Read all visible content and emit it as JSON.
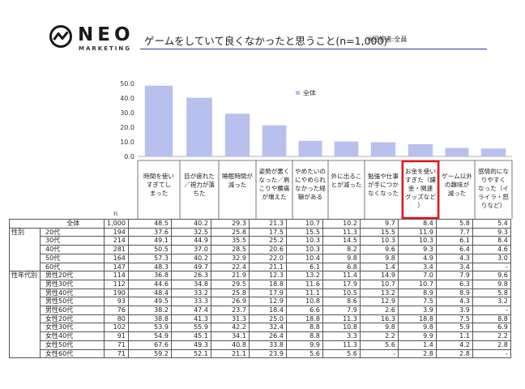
{
  "logo": {
    "word": "NEO",
    "sub": "MARKETING"
  },
  "header": {
    "title": "ゲームをしていて良くなかったと思うこと(n=1,000)",
    "note": "※回答者:全員"
  },
  "chart_data": {
    "type": "bar",
    "title": "ゲームをしていて良くなかったと思うこと(n=1,000)",
    "ylim": [
      0,
      50
    ],
    "yticks": [
      "50.0",
      "40.0",
      "30.0",
      "20.0",
      "10.0",
      "0.0"
    ],
    "legend": {
      "label": "全体",
      "position": "top-center"
    },
    "bar_color": "#b8c0ee",
    "highlight_color": "#e8141b",
    "highlight_index": 7,
    "categories": [
      "時間を使いすぎてしまった",
      "目が疲れた／視力が落ちた",
      "睡眠時間が減った",
      "姿勢が悪くなった／肩こりや腰痛が増えた",
      "やめたいのにやめられなかった経験がある",
      "外に出ることが減った",
      "勉強や仕事が手につかなくなった",
      "お金を使いすぎた（課金・関連グッズなど）",
      "ゲーム以外の趣味が減った",
      "感情的になりやすくなった（イライラ・怒りなど）"
    ],
    "category_lines": [
      [
        "時間を使い",
        "すぎてし",
        "まった"
      ],
      [
        "目が疲れた",
        "／視力が落",
        "ちた"
      ],
      [
        "睡眠時間が",
        "減った"
      ],
      [
        "姿勢が悪く",
        "なった／肩",
        "こりや腰痛",
        "が増えた"
      ],
      [
        "やめたいの",
        "にやめられ",
        "なかった経",
        "験がある"
      ],
      [
        "外に出るこ",
        "とが減った"
      ],
      [
        "勉強や仕事",
        "が手につか",
        "なくなった"
      ],
      [
        "お金を使い",
        "すぎた（課",
        "金・関連",
        "グッズなど",
        "）"
      ],
      [
        "ゲーム以外",
        "の趣味が",
        "減った"
      ],
      [
        "感情的にな",
        "りやすく",
        "なった（イ",
        "ライラ・怒",
        "りなど）"
      ]
    ],
    "values": [
      48.5,
      40.2,
      29.3,
      21.3,
      10.7,
      10.2,
      9.7,
      8.4,
      5.8,
      5.4
    ],
    "n_label": "n",
    "table": {
      "rows": [
        {
          "group": "",
          "label": "全体",
          "n": "1,000",
          "values": [
            "48.5",
            "40.2",
            "29.3",
            "21.3",
            "10.7",
            "10.2",
            "9.7",
            "8.4",
            "5.8",
            "5.4"
          ]
        },
        {
          "group": "性別",
          "label": "20代",
          "n": "194",
          "values": [
            "37.6",
            "32.5",
            "25.8",
            "17.5",
            "15.5",
            "11.3",
            "15.5",
            "11.9",
            "7.7",
            "9.3"
          ]
        },
        {
          "group": "",
          "label": "30代",
          "n": "214",
          "values": [
            "49.1",
            "44.9",
            "35.5",
            "25.2",
            "10.3",
            "14.5",
            "10.3",
            "10.3",
            "6.1",
            "8.4"
          ]
        },
        {
          "group": "",
          "label": "40代",
          "n": "281",
          "values": [
            "50.5",
            "37.0",
            "28.5",
            "20.6",
            "10.3",
            "8.2",
            "9.6",
            "9.3",
            "6.4",
            "4.6"
          ]
        },
        {
          "group": "",
          "label": "50代",
          "n": "164",
          "values": [
            "57.3",
            "40.2",
            "32.9",
            "22.0",
            "10.4",
            "9.8",
            "9.8",
            "4.9",
            "4.3",
            "3.0"
          ]
        },
        {
          "group": "",
          "label": "60代",
          "n": "147",
          "values": [
            "48.3",
            "49.7",
            "22.4",
            "21.1",
            "6.1",
            "6.8",
            "1.4",
            "3.4",
            "3.4",
            "-"
          ]
        },
        {
          "group": "性年代別",
          "label": "男性20代",
          "n": "114",
          "values": [
            "36.8",
            "26.3",
            "21.9",
            "12.3",
            "13.2",
            "11.4",
            "14.9",
            "7.0",
            "7.9",
            "9.6"
          ]
        },
        {
          "group": "",
          "label": "男性30代",
          "n": "112",
          "values": [
            "44.6",
            "34.8",
            "29.5",
            "18.8",
            "11.6",
            "17.9",
            "10.7",
            "10.7",
            "6.3",
            "9.8"
          ]
        },
        {
          "group": "",
          "label": "男性40代",
          "n": "190",
          "values": [
            "48.4",
            "33.2",
            "25.8",
            "17.9",
            "11.1",
            "10.5",
            "13.2",
            "8.9",
            "8.9",
            "5.8"
          ]
        },
        {
          "group": "",
          "label": "男性50代",
          "n": "93",
          "values": [
            "49.5",
            "33.3",
            "26.9",
            "12.9",
            "10.8",
            "8.6",
            "12.9",
            "7.5",
            "4.3",
            "3.2"
          ]
        },
        {
          "group": "",
          "label": "男性60代",
          "n": "76",
          "values": [
            "38.2",
            "47.4",
            "23.7",
            "18.4",
            "6.6",
            "7.9",
            "2.6",
            "3.9",
            "3.9",
            "-"
          ]
        },
        {
          "group": "",
          "label": "女性20代",
          "n": "80",
          "values": [
            "38.8",
            "41.3",
            "31.3",
            "25.0",
            "18.8",
            "11.3",
            "16.3",
            "18.8",
            "7.5",
            "8.8"
          ]
        },
        {
          "group": "",
          "label": "女性30代",
          "n": "102",
          "values": [
            "53.9",
            "55.9",
            "42.2",
            "32.4",
            "8.8",
            "10.8",
            "9.8",
            "9.8",
            "5.9",
            "6.9"
          ]
        },
        {
          "group": "",
          "label": "女性40代",
          "n": "91",
          "values": [
            "54.9",
            "45.1",
            "34.1",
            "26.4",
            "8.8",
            "3.3",
            "2.2",
            "9.9",
            "1.1",
            "2.2"
          ]
        },
        {
          "group": "",
          "label": "女性50代",
          "n": "71",
          "values": [
            "67.6",
            "49.3",
            "40.8",
            "33.8",
            "9.9",
            "11.3",
            "5.6",
            "1.4",
            "4.2",
            "2.8"
          ]
        },
        {
          "group": "",
          "label": "女性60代",
          "n": "71",
          "values": [
            "59.2",
            "52.1",
            "21.1",
            "23.9",
            "5.6",
            "5.6",
            "-",
            "2.8",
            "2.8",
            "-"
          ]
        }
      ]
    }
  }
}
